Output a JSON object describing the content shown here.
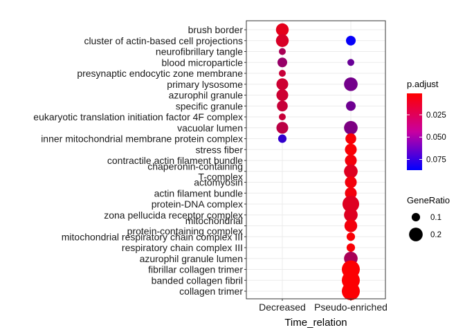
{
  "chart_data": {
    "type": "scatter",
    "xlabel": "Time_relation",
    "ylabel": "",
    "categories_x": [
      "Decreased",
      "Pseudo-enriched"
    ],
    "categories_y": [
      "brush border",
      "cluster of actin-based cell projections",
      "neurofibrillary tangle",
      "blood microparticle",
      "presynaptic endocytic zone membrane",
      "primary lysosome",
      "azurophil granule",
      "specific granule",
      "eukaryotic translation initiation factor 4F complex",
      "vacuolar lumen",
      "inner mitochondrial membrane protein complex",
      "stress fiber",
      "contractile actin filament bundle",
      "chaperonin-containing\nT-complex",
      "actomyosin",
      "actin filament bundle",
      "protein-DNA complex",
      "zona pellucida receptor complex",
      "mitochondrial\nprotein-containing complex",
      "mitochondrial respiratory chain complex III",
      "respiratory chain complex III",
      "azurophil granule lumen",
      "fibrillar collagen trimer",
      "banded collagen fibril",
      "collagen trimer"
    ],
    "points": [
      {
        "x": "Decreased",
        "y": "brush border",
        "gene_ratio": 0.18,
        "p_adjust": 0.01
      },
      {
        "x": "Decreased",
        "y": "cluster of actin-based cell projections",
        "gene_ratio": 0.18,
        "p_adjust": 0.014
      },
      {
        "x": "Decreased",
        "y": "neurofibrillary tangle",
        "gene_ratio": 0.08,
        "p_adjust": 0.03
      },
      {
        "x": "Decreased",
        "y": "blood microparticle",
        "gene_ratio": 0.12,
        "p_adjust": 0.036
      },
      {
        "x": "Decreased",
        "y": "presynaptic endocytic zone membrane",
        "gene_ratio": 0.08,
        "p_adjust": 0.02
      },
      {
        "x": "Decreased",
        "y": "primary lysosome",
        "gene_ratio": 0.16,
        "p_adjust": 0.018
      },
      {
        "x": "Decreased",
        "y": "azurophil granule",
        "gene_ratio": 0.16,
        "p_adjust": 0.018
      },
      {
        "x": "Decreased",
        "y": "specific granule",
        "gene_ratio": 0.14,
        "p_adjust": 0.02
      },
      {
        "x": "Decreased",
        "y": "eukaryotic translation initiation factor 4F complex",
        "gene_ratio": 0.08,
        "p_adjust": 0.02
      },
      {
        "x": "Decreased",
        "y": "vacuolar lumen",
        "gene_ratio": 0.16,
        "p_adjust": 0.024
      },
      {
        "x": "Decreased",
        "y": "inner mitochondrial membrane protein complex",
        "gene_ratio": 0.1,
        "p_adjust": 0.07
      },
      {
        "x": "Pseudo-enriched",
        "y": "cluster of actin-based cell projections",
        "gene_ratio": 0.12,
        "p_adjust": 0.085
      },
      {
        "x": "Pseudo-enriched",
        "y": "blood microparticle",
        "gene_ratio": 0.08,
        "p_adjust": 0.052
      },
      {
        "x": "Pseudo-enriched",
        "y": "primary lysosome",
        "gene_ratio": 0.2,
        "p_adjust": 0.048
      },
      {
        "x": "Pseudo-enriched",
        "y": "specific granule",
        "gene_ratio": 0.12,
        "p_adjust": 0.05
      },
      {
        "x": "Pseudo-enriched",
        "y": "vacuolar lumen",
        "gene_ratio": 0.2,
        "p_adjust": 0.045
      },
      {
        "x": "Pseudo-enriched",
        "y": "inner mitochondrial membrane protein complex",
        "gene_ratio": 0.14,
        "p_adjust": 0.003
      },
      {
        "x": "Pseudo-enriched",
        "y": "stress fiber",
        "gene_ratio": 0.16,
        "p_adjust": 0.003
      },
      {
        "x": "Pseudo-enriched",
        "y": "contractile actin filament bundle",
        "gene_ratio": 0.16,
        "p_adjust": 0.005
      },
      {
        "x": "Pseudo-enriched",
        "y": "chaperonin-containing\nT-complex",
        "gene_ratio": 0.2,
        "p_adjust": 0.012
      },
      {
        "x": "Pseudo-enriched",
        "y": "actomyosin",
        "gene_ratio": 0.16,
        "p_adjust": 0.005
      },
      {
        "x": "Pseudo-enriched",
        "y": "actin filament bundle",
        "gene_ratio": 0.16,
        "p_adjust": 0.005
      },
      {
        "x": "Pseudo-enriched",
        "y": "protein-DNA complex",
        "gene_ratio": 0.28,
        "p_adjust": 0.012
      },
      {
        "x": "Pseudo-enriched",
        "y": "zona pellucida receptor complex",
        "gene_ratio": 0.2,
        "p_adjust": 0.012
      },
      {
        "x": "Pseudo-enriched",
        "y": "mitochondrial\nprotein-containing complex",
        "gene_ratio": 0.18,
        "p_adjust": 0.005
      },
      {
        "x": "Pseudo-enriched",
        "y": "mitochondrial respiratory chain complex III",
        "gene_ratio": 0.1,
        "p_adjust": 0.003
      },
      {
        "x": "Pseudo-enriched",
        "y": "respiratory chain complex III",
        "gene_ratio": 0.1,
        "p_adjust": 0.003
      },
      {
        "x": "Pseudo-enriched",
        "y": "azurophil granule lumen",
        "gene_ratio": 0.2,
        "p_adjust": 0.03
      },
      {
        "x": "Pseudo-enriched",
        "y": "fibrillar collagen trimer",
        "gene_ratio": 0.32,
        "p_adjust": 0.002
      },
      {
        "x": "Pseudo-enriched",
        "y": "banded collagen fibril",
        "gene_ratio": 0.32,
        "p_adjust": 0.002
      },
      {
        "x": "Pseudo-enriched",
        "y": "collagen trimer",
        "gene_ratio": 0.32,
        "p_adjust": 0.002
      }
    ],
    "color_scale": {
      "title": "p.adjust",
      "domain": [
        0.001,
        0.087
      ],
      "ticks": [
        0.025,
        0.05,
        0.075
      ],
      "tick_labels": [
        "0.025",
        "0.050",
        "0.075"
      ],
      "low_color": "#ff0000",
      "high_color": "#0000ff",
      "reversed": true
    },
    "size_scale": {
      "title": "GeneRatio",
      "domain": [
        0.08,
        0.32
      ],
      "ticks": [
        0.1,
        0.2
      ],
      "tick_labels": [
        "0.1",
        "0.2"
      ]
    },
    "grid": true,
    "legend_position": "right"
  }
}
